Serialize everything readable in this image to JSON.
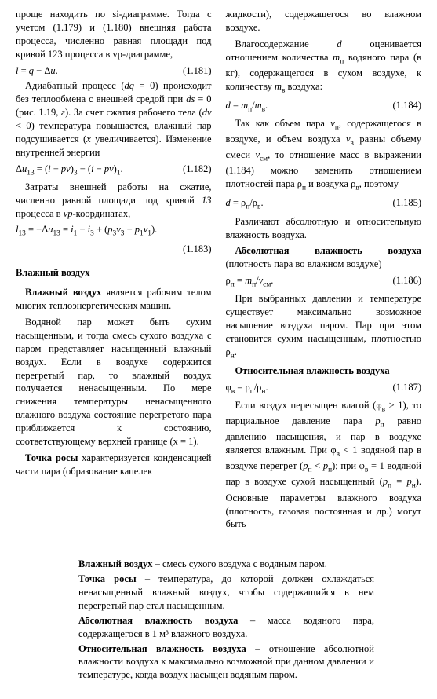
{
  "left": {
    "p1": "проще находить по si-диаграмме. Тогда с учетом (1.179) и (1.180) внешняя работа процесса, численно равная площади под кривой 123 процесса в vp-диаграмме,",
    "eq1_lhs": "l = q − Δu.",
    "eq1_num": "(1.181)",
    "p2": "Адиабатный процесс (dq = 0) происходит без теплообмена с внешней средой при ds = 0 (рис. 1.19, г). За счет сжатия рабочего тела (dv < 0) температура повышается, влажный пар подсушивается (x увеличивается). Изменение внутренней энергии",
    "eq2_lhs": "Δu13 = (i − pv)3 − (i − pv)1.",
    "eq2_num": "(1.182)",
    "p3": "Затраты внешней работы на сжатие, численно равной площади под кривой 13 процесса в vp-координатах,",
    "eq3_lhs": "l13 = −Δu13 = i1 − i3 + (p3v3 − p1v1).",
    "eq3_num": "(1.183)",
    "sec_title": "Влажный воздух",
    "p4a": "Влажный воздух",
    "p4b": " является рабочим телом многих теплоэнергетических машин.",
    "p5": "Водяной пар может быть сухим насыщенным, и тогда смесь сухого воздуха с паром представляет насыщенный влажный воздух. Если в воздухе содержится перегретый пар, то влажный воздух получается ненасыщенным. По мере снижения температуры ненасыщенного влажного воздуха состояние перегретого пара приближается к состоянию, соответствующему верхней границе (x = 1).",
    "p6a": "Точка росы",
    "p6b": " характеризуется конденсацией части пара (образование капелек"
  },
  "right": {
    "p1": "жидкости), содержащегося во влажном воздухе.",
    "p2": "Влагосодержание d оценивается отношением количества mп водяного пара (в кг), содержащегося в сухом воздухе, к количеству mв воздуха:",
    "eq4_lhs": "d = mп/mв.",
    "eq4_num": "(1.184)",
    "p3": "Так как объем пара vп, содержащегося в воздухе, и объем воздуха vв равны объему смеси vсм, то отношение масс в выражении (1.184) можно заменить отношением плотностей пара ρп и воздуха ρв, поэтому",
    "eq5_lhs": "d = ρп/ρв.",
    "eq5_num": "(1.185)",
    "p4": "Различают абсолютную и относительную влажность воздуха.",
    "p5a": "Абсолютная влажность воздуха",
    "p5b": " (плотность пара во влажном воздухе)",
    "eq6_lhs": "ρп = mп/vсм.",
    "eq6_num": "(1.186)",
    "p6": "При выбранных давлении и температуре существует максимально возможное насыщение воздуха паром. Пар при этом становится сухим насыщенным, плотностью ρн.",
    "p7": "Относительная влажность воздуха",
    "eq7_lhs": "φв = ρп/ρн.",
    "eq7_num": "(1.187)",
    "p8": "Если воздух пересыщен влагой (φв > 1), то парциальное давление пара pп равно давлению насыщения, и пар в воздухе является влажным. При φв < 1 водяной пар в воздухе перегрет (pп < pн); при φв = 1 водяной пар в воздухе сухой насыщенный (pп = pн). Основные параметры влажного воздуха (плотность, газовая постоянная и др.) могут быть"
  },
  "defs": {
    "d1a": "Влажный воздух",
    "d1b": " – смесь сухого воздуха с водяным паром.",
    "d2a": "Точка росы",
    "d2b": " – температура, до которой должен охлаждаться ненасыщенный влажный воздух, чтобы содержащийся в нем перегретый пар стал насыщенным.",
    "d3a": "Абсолютная влажность воздуха",
    "d3b": " – масса водяного пара, содержащегося в 1 м³ влажного воздуха.",
    "d4a": "Относительная влажность воздуха",
    "d4b": " – отношение абсолютной влажности воздуха к максимально возможной при данном давлении и температуре, когда воздух насыщен водяным паром."
  }
}
